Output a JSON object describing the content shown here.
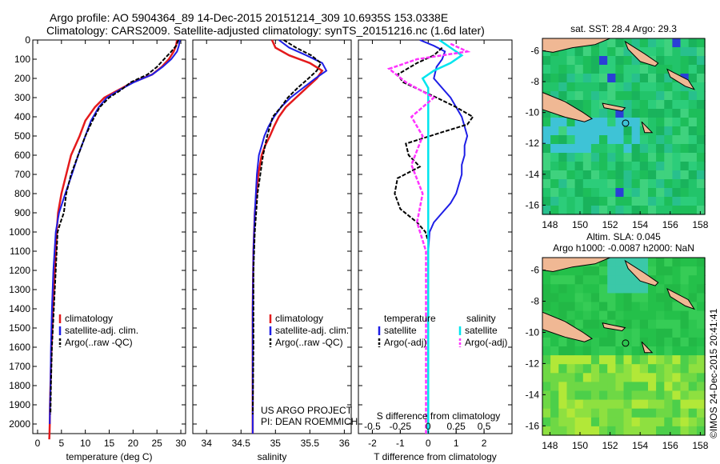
{
  "header": {
    "line1": "Argo profile: AO 5904364_89 14-Dec-2015 20151214_309 10.6935S 153.0338E",
    "line2": "Climatology: CARS2009. Satellite-adjusted climatology: synTS_20151216.nc (1.6d later)"
  },
  "credits": {
    "line1": "US ARGO PROJECT",
    "line2": "PI: DEAN ROEMMICH"
  },
  "stamp": "©IMOS 24-Dec-2015 20:41:41",
  "colors": {
    "climatology": "#e41a1c",
    "satellite": "#1e1ee6",
    "argo": "#000000",
    "sat_salinity": "#00e5ee",
    "argo_salinity": "#ff33ff",
    "land": "#f0b894"
  },
  "chart_data": [
    {
      "id": "temperature",
      "type": "line",
      "xlabel": "temperature (deg C)",
      "ylabel": "",
      "xlim": [
        -1,
        31
      ],
      "ylim": [
        2050,
        0
      ],
      "xticks": [
        0,
        5,
        10,
        15,
        20,
        25,
        30
      ],
      "xticklabels": [
        "0",
        "5",
        "10",
        "15",
        "20",
        "25",
        "30"
      ],
      "yticks": [
        0,
        100,
        200,
        300,
        400,
        500,
        600,
        700,
        800,
        900,
        1000,
        1100,
        1200,
        1300,
        1400,
        1500,
        1600,
        1700,
        1800,
        1900,
        2000
      ],
      "yticklabels": [
        "0",
        "100",
        "200",
        "300",
        "400",
        "500",
        "600",
        "700",
        "800",
        "900",
        "1000",
        "1100",
        "1200",
        "1300",
        "1400",
        "1500",
        "1600",
        "1700",
        "1800",
        "1900",
        "2000"
      ],
      "legend": [
        "climatology",
        "satellite-adj. clim.",
        "Argo(..raw -QC)"
      ],
      "series": [
        {
          "name": "climatology",
          "x": [
            29.2,
            29.0,
            28.5,
            27.5,
            26.0,
            24.0,
            20.0,
            17.0,
            14.0,
            12.0,
            10.0,
            8.8,
            7.0,
            6.0,
            5.0,
            4.3,
            4.0,
            3.6,
            3.2,
            2.9,
            2.7,
            2.6,
            2.55,
            2.5,
            2.45
          ],
          "y": [
            0,
            30,
            60,
            100,
            140,
            180,
            220,
            260,
            300,
            350,
            420,
            500,
            600,
            700,
            800,
            900,
            1000,
            1200,
            1400,
            1600,
            1800,
            1900,
            2000,
            2050,
            2080
          ]
        },
        {
          "name": "satellite",
          "x": [
            29.8,
            29.6,
            29.2,
            28.0,
            26.2,
            24.0,
            20.2,
            17.2,
            14.5,
            12.8,
            11.2,
            10.0,
            8.5,
            7.2,
            5.8,
            4.5,
            3.8,
            3.3,
            3.0,
            2.8,
            2.7,
            2.6,
            2.55
          ],
          "y": [
            0,
            30,
            60,
            100,
            140,
            180,
            220,
            260,
            300,
            350,
            420,
            500,
            600,
            700,
            800,
            900,
            1000,
            1200,
            1400,
            1600,
            1800,
            1900,
            2000
          ]
        },
        {
          "name": "argo",
          "x": [
            29.5,
            29.0,
            28.0,
            26.5,
            25.0,
            23.0,
            19.5,
            17.5,
            15.0,
            13.0,
            11.5,
            10.0,
            8.5,
            7.0,
            6.0,
            5.5,
            4.8,
            4.2,
            3.8,
            3.4,
            3.0,
            2.8,
            2.7
          ],
          "y": [
            0,
            30,
            60,
            100,
            140,
            180,
            220,
            260,
            300,
            350,
            420,
            500,
            600,
            700,
            800,
            900,
            950,
            1000,
            1200,
            1400,
            1600,
            1800,
            1950
          ]
        }
      ]
    },
    {
      "id": "salinity",
      "type": "line",
      "xlabel": "salinity",
      "ylabel": "",
      "xlim": [
        33.8,
        36.1
      ],
      "ylim": [
        2050,
        0
      ],
      "xticks": [
        34,
        34.5,
        35,
        35.5,
        36
      ],
      "xticklabels": [
        "34",
        "34.5",
        "35",
        "35.5",
        "36"
      ],
      "legend": [
        "climatology",
        "satellite-adj. clim.",
        "Argo(..raw -QC)"
      ],
      "series": [
        {
          "name": "climatology",
          "x": [
            34.95,
            35.0,
            35.2,
            35.5,
            35.68,
            35.6,
            35.45,
            35.3,
            35.15,
            35.05,
            34.98,
            34.92,
            34.85,
            34.8,
            34.75,
            34.7,
            34.68,
            34.67,
            34.67,
            34.67
          ],
          "y": [
            0,
            40,
            80,
            120,
            160,
            200,
            250,
            300,
            350,
            400,
            450,
            500,
            550,
            600,
            700,
            900,
            1100,
            1400,
            1800,
            2050
          ]
        },
        {
          "name": "satellite",
          "x": [
            35.05,
            35.2,
            35.45,
            35.68,
            35.74,
            35.58,
            35.4,
            35.22,
            35.08,
            34.98,
            34.9,
            34.84,
            34.8,
            34.76,
            34.73,
            34.7,
            34.68,
            34.67,
            34.67,
            34.67
          ],
          "y": [
            0,
            40,
            80,
            120,
            160,
            200,
            250,
            300,
            350,
            400,
            450,
            500,
            550,
            600,
            700,
            900,
            1100,
            1400,
            1800,
            2050
          ]
        },
        {
          "name": "argo",
          "x": [
            35.12,
            35.3,
            35.52,
            35.66,
            35.6,
            35.48,
            35.32,
            35.18,
            35.08,
            34.96,
            34.88,
            34.82,
            34.78,
            34.74,
            34.72,
            34.7,
            34.68,
            34.68,
            34.67
          ],
          "y": [
            0,
            40,
            80,
            120,
            160,
            200,
            250,
            300,
            350,
            400,
            500,
            600,
            700,
            800,
            900,
            1000,
            1200,
            1600,
            1950
          ]
        }
      ]
    },
    {
      "id": "difference",
      "type": "line",
      "xlabel": "T difference from climatology",
      "xlabel_top": "S difference from climatology",
      "xlim": [
        -2.5,
        3.0
      ],
      "ylim": [
        2050,
        0
      ],
      "xticks": [
        -2,
        -1,
        0,
        1,
        2
      ],
      "xticklabels": [
        "-2",
        "-1",
        "0",
        "1",
        "2"
      ],
      "top_ticks": [
        -0.5,
        -0.25,
        0,
        0.25,
        0.5
      ],
      "top_ticklabels": [
        "-0.5",
        "-0.25",
        "0",
        "0.25",
        "0.5"
      ],
      "top_scale": 4,
      "legend": [
        "temperature",
        "satellite",
        "Argo(-adj)",
        "salinity",
        "satellite",
        "Argo(-adj)"
      ],
      "series": [
        {
          "name": "temperature satellite",
          "x": [
            -0.3,
            0.2,
            0.6,
            0.5,
            0.3,
            0.2,
            0.5,
            0.8,
            1.0,
            1.2,
            1.3,
            1.4,
            1.3,
            1.3,
            1.2,
            1.2,
            1.1,
            1.0,
            0.8,
            0.5,
            0.2,
            0.05,
            0.0,
            0.0,
            0.0
          ],
          "y": [
            0,
            30,
            60,
            100,
            140,
            200,
            250,
            300,
            350,
            400,
            450,
            500,
            550,
            600,
            650,
            700,
            750,
            800,
            850,
            900,
            950,
            1000,
            1100,
            1400,
            2050
          ]
        },
        {
          "name": "temperature argo",
          "x": [
            0.5,
            0.2,
            -0.4,
            -1.1,
            -0.9,
            -0.3,
            0.3,
            1.0,
            1.6,
            1.4,
            0.5,
            -0.8,
            -0.7,
            -0.3,
            -1.1,
            -1.2,
            -1.0,
            -0.4,
            -0.1,
            0.0
          ],
          "y": [
            40,
            80,
            120,
            180,
            220,
            260,
            300,
            350,
            400,
            440,
            480,
            540,
            600,
            660,
            720,
            800,
            880,
            950,
            1000,
            1050
          ]
        },
        {
          "name": "salinity satellite",
          "x": [
            0.1,
            0.2,
            0.3,
            0.2,
            0.05,
            -0.05,
            0.0,
            0.0,
            0.0
          ],
          "y": [
            0,
            40,
            80,
            120,
            160,
            200,
            250,
            400,
            2050
          ]
        },
        {
          "name": "salinity argo",
          "x": [
            0.2,
            0.35,
            -0.1,
            -0.35,
            -0.2,
            0.05,
            -0.15,
            -0.05,
            -0.15,
            -0.05,
            -0.1,
            -0.02,
            -0.02
          ],
          "y": [
            20,
            60,
            100,
            150,
            220,
            300,
            400,
            500,
            650,
            800,
            950,
            1100,
            2050
          ]
        }
      ]
    }
  ],
  "maps": [
    {
      "id": "sst",
      "title1": "sat. SST: 28.4  Argo: 29.3",
      "title2": "",
      "xticks": [
        148,
        150,
        152,
        154,
        156,
        158
      ],
      "xticklabels": [
        "148",
        "150",
        "152",
        "154",
        "156",
        "158"
      ],
      "yticks": [
        -6,
        -8,
        -10,
        -12,
        -14,
        -16
      ],
      "yticklabels": [
        "-6",
        "-8",
        "-10",
        "-12",
        "-14",
        "-16"
      ],
      "xlim": [
        147.5,
        158.3
      ],
      "ylim": [
        -16.6,
        -5.2
      ],
      "float_pos": [
        153.03,
        -10.69
      ]
    },
    {
      "id": "sla",
      "title1": "Altim. SLA: 0.045",
      "title2": "Argo h1000: -0.0087 h2000: NaN",
      "xticks": [
        148,
        150,
        152,
        154,
        156,
        158
      ],
      "xticklabels": [
        "148",
        "150",
        "152",
        "154",
        "156",
        "158"
      ],
      "yticks": [
        -6,
        -8,
        -10,
        -12,
        -14,
        -16
      ],
      "yticklabels": [
        "-6",
        "-8",
        "-10",
        "-12",
        "-14",
        "-16"
      ],
      "xlim": [
        147.5,
        158.3
      ],
      "ylim": [
        -16.6,
        -5.2
      ],
      "float_pos": [
        153.03,
        -10.69
      ]
    }
  ]
}
